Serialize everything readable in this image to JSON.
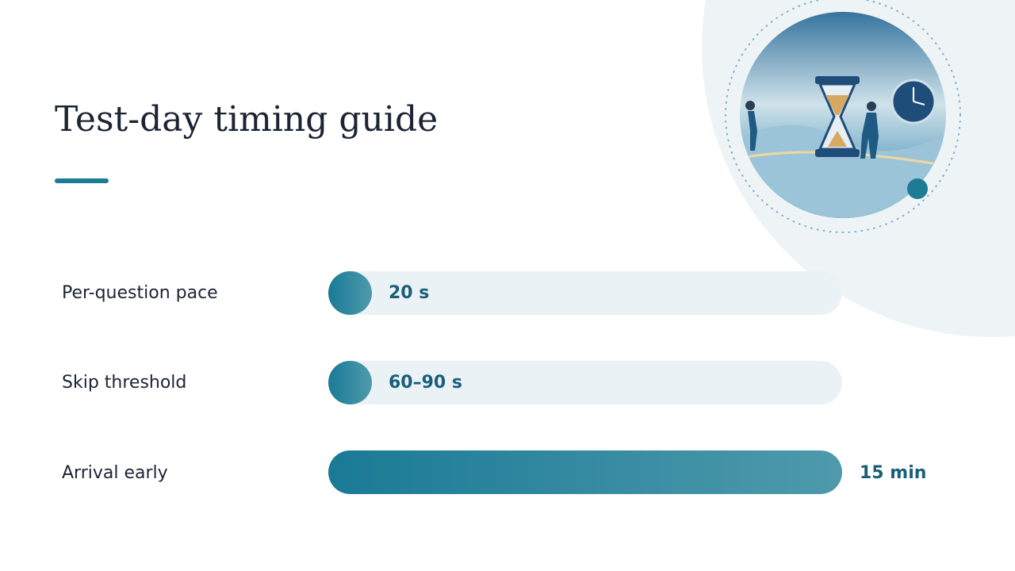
{
  "title": "Test-day timing guide",
  "rows": [
    {
      "label": "Per-question pace",
      "value": "20 s"
    },
    {
      "label": "Skip threshold",
      "value": "60–90 s"
    },
    {
      "label": "Arrival early",
      "value": "15 min"
    }
  ]
}
